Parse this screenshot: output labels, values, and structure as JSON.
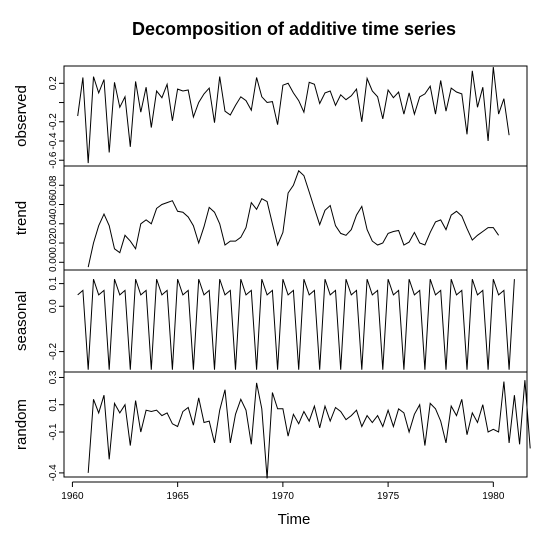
{
  "title": "Decomposition of additive time series",
  "chart_data": {
    "type": "line",
    "title": "Decomposition of additive time series",
    "xlabel": "Time",
    "xlim": [
      1959.6,
      1981.6
    ],
    "x_ticks": [
      1960,
      1965,
      1970,
      1975,
      1980
    ],
    "x_tick_labels": [
      "1960",
      "1965",
      "1970",
      "1975",
      "1980"
    ],
    "grid": false,
    "panels": [
      {
        "name": "observed",
        "ylabel": "observed",
        "ylim": [
          -0.66,
          0.38
        ],
        "y_ticks": [
          -0.6,
          -0.4,
          -0.2,
          0.0,
          0.2
        ],
        "y_tick_labels": [
          "-0.6",
          "-0.4",
          "-0.2",
          "",
          "0.2"
        ],
        "start": 1960.25,
        "frequency": 4,
        "values": [
          -0.14,
          0.26,
          -0.63,
          0.27,
          0.1,
          0.24,
          -0.52,
          0.21,
          -0.05,
          0.06,
          -0.46,
          0.22,
          -0.1,
          0.16,
          -0.26,
          0.12,
          0.05,
          0.19,
          -0.19,
          0.14,
          0.12,
          0.13,
          -0.15,
          0.0,
          0.09,
          0.15,
          -0.21,
          0.27,
          -0.09,
          -0.13,
          -0.03,
          0.06,
          0.02,
          -0.08,
          0.26,
          0.06,
          0.0,
          0.01,
          -0.23,
          0.18,
          0.2,
          0.1,
          0.02,
          -0.1,
          0.21,
          0.19,
          -0.01,
          0.1,
          0.12,
          -0.03,
          0.08,
          0.03,
          0.07,
          0.14,
          -0.2,
          0.25,
          0.12,
          0.06,
          -0.17,
          0.13,
          0.05,
          0.11,
          -0.12,
          0.1,
          -0.12,
          0.06,
          0.09,
          0.17,
          -0.12,
          0.23,
          -0.09,
          0.15,
          0.11,
          0.09,
          -0.33,
          0.33,
          -0.05,
          0.16,
          -0.4,
          0.37,
          -0.12,
          0.04,
          -0.34
        ]
      },
      {
        "name": "trend",
        "ylabel": "trend",
        "ylim": [
          -0.008,
          0.1
        ],
        "y_ticks": [
          0.0,
          0.02,
          0.04,
          0.06,
          0.08
        ],
        "y_tick_labels": [
          "0.00",
          "0.02",
          "0.04",
          "0.06",
          "0.08"
        ],
        "start": 1960.75,
        "frequency": 4,
        "values": [
          -0.005,
          0.02,
          0.038,
          0.05,
          0.038,
          0.014,
          0.01,
          0.028,
          0.022,
          0.014,
          0.04,
          0.044,
          0.04,
          0.056,
          0.06,
          0.062,
          0.064,
          0.053,
          0.052,
          0.047,
          0.038,
          0.02,
          0.037,
          0.057,
          0.052,
          0.04,
          0.018,
          0.022,
          0.022,
          0.026,
          0.036,
          0.062,
          0.055,
          0.066,
          0.063,
          0.04,
          0.018,
          0.031,
          0.072,
          0.08,
          0.095,
          0.09,
          0.073,
          0.056,
          0.039,
          0.054,
          0.059,
          0.038,
          0.03,
          0.028,
          0.034,
          0.049,
          0.058,
          0.034,
          0.022,
          0.018,
          0.02,
          0.03,
          0.032,
          0.033,
          0.018,
          0.021,
          0.031,
          0.02,
          0.018,
          0.031,
          0.042,
          0.044,
          0.034,
          0.049,
          0.053,
          0.048,
          0.035,
          0.023,
          0.028,
          0.032,
          0.036,
          0.036,
          0.028
        ]
      },
      {
        "name": "seasonal",
        "ylabel": "seasonal",
        "ylim": [
          -0.29,
          0.16
        ],
        "y_ticks": [
          -0.2,
          0.0,
          0.1
        ],
        "y_tick_labels": [
          "-0.2",
          "0.0",
          "0.1"
        ],
        "start": 1960.25,
        "frequency": 4,
        "pattern": [
          0.05,
          0.07,
          -0.28,
          0.12
        ],
        "cycles": 21
      },
      {
        "name": "random",
        "ylabel": "random",
        "ylim": [
          -0.43,
          0.34
        ],
        "y_ticks": [
          -0.4,
          -0.1,
          0.1,
          0.3
        ],
        "y_tick_labels": [
          "-0.4",
          "-0.1",
          "0.1",
          "0.3"
        ],
        "start": 1960.75,
        "frequency": 4,
        "values": [
          -0.4,
          0.14,
          0.04,
          0.17,
          -0.3,
          0.11,
          0.04,
          0.1,
          -0.2,
          0.13,
          -0.1,
          0.06,
          0.05,
          0.06,
          0.02,
          0.04,
          -0.04,
          -0.06,
          0.05,
          0.08,
          -0.05,
          0.15,
          -0.03,
          -0.02,
          -0.18,
          0.06,
          0.21,
          -0.18,
          0.03,
          0.14,
          0.06,
          -0.19,
          0.26,
          0.07,
          -0.44,
          0.19,
          0.07,
          0.07,
          -0.13,
          0.03,
          -0.04,
          0.05,
          -0.02,
          0.09,
          -0.07,
          0.09,
          -0.02,
          0.08,
          0.05,
          -0.01,
          0.02,
          0.06,
          -0.06,
          0.02,
          -0.03,
          0.02,
          -0.06,
          0.06,
          -0.06,
          0.07,
          0.04,
          -0.1,
          0.03,
          0.1,
          -0.2,
          0.11,
          0.07,
          -0.02,
          -0.18,
          0.09,
          0.02,
          0.14,
          -0.12,
          0.04,
          -0.03,
          0.1,
          -0.1,
          -0.08,
          -0.1,
          0.27,
          -0.18,
          0.17,
          -0.19,
          0.28,
          -0.22
        ]
      }
    ]
  }
}
